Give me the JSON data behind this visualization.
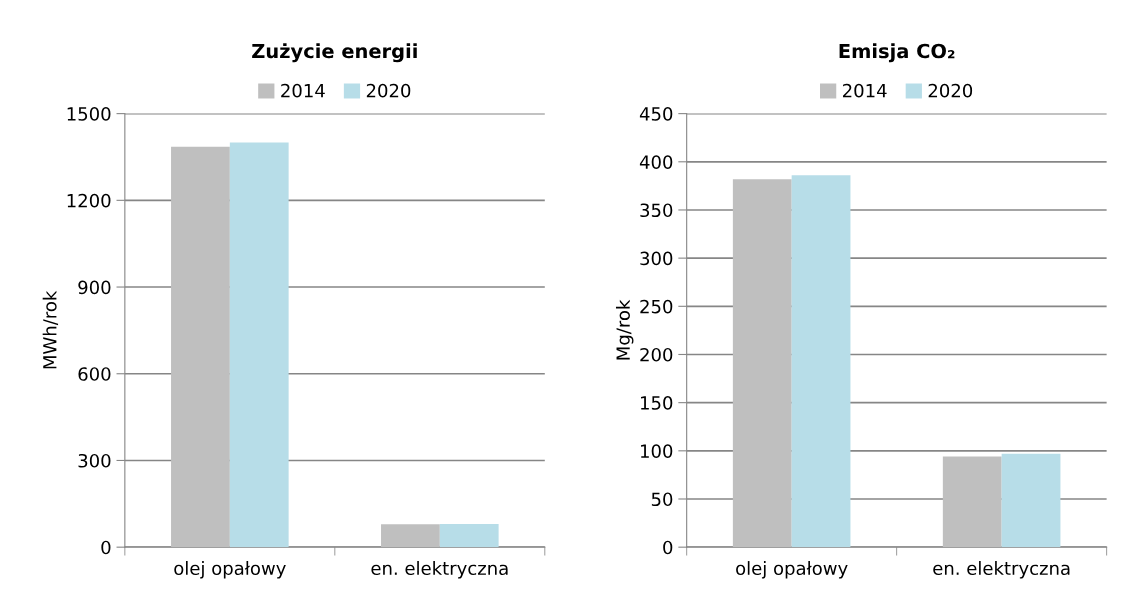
{
  "chart_data": [
    {
      "type": "bar",
      "title": "Zużycie energii",
      "ylabel": "MWh/rok",
      "categories": [
        "olej opałowy",
        "en. elektryczna"
      ],
      "series": [
        {
          "name": "2014",
          "color": "#bfbfbf",
          "values": [
            1385,
            79
          ]
        },
        {
          "name": "2020",
          "color": "#b7dde8",
          "values": [
            1400,
            80
          ]
        }
      ],
      "ylim": [
        0,
        1500
      ],
      "yticks": [
        0,
        300,
        600,
        900,
        1200,
        1500
      ],
      "grid": "y",
      "legend": "top"
    },
    {
      "type": "bar",
      "title": "Emisja CO₂",
      "ylabel": "Mg/rok",
      "categories": [
        "olej opałowy",
        "en. elektryczna"
      ],
      "series": [
        {
          "name": "2014",
          "color": "#bfbfbf",
          "values": [
            382,
            94
          ]
        },
        {
          "name": "2020",
          "color": "#b7dde8",
          "values": [
            386,
            97
          ]
        }
      ],
      "ylim": [
        0,
        450
      ],
      "yticks": [
        0,
        50,
        100,
        150,
        200,
        250,
        300,
        350,
        400,
        450
      ],
      "grid": "y",
      "legend": "top"
    }
  ]
}
